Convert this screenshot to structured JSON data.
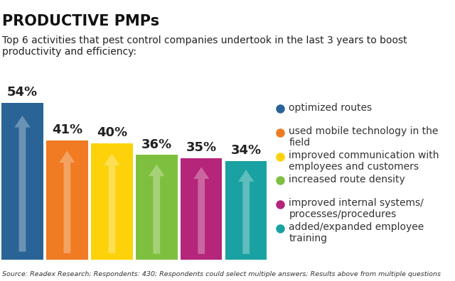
{
  "chart_data": {
    "type": "bar",
    "title": "PRODUCTIVE PMPs",
    "subtitle": "Top 6 activities that pest control companies undertook in the last 3 years to boost productivity and efficiency:",
    "categories": [
      "optimized routes",
      "used mobile technology in the field",
      "improved communication with employees and customers",
      "increased route density",
      "improved internal systems/ processes/procedures",
      "added/expanded employee training"
    ],
    "values": [
      54,
      41,
      40,
      36,
      35,
      34
    ],
    "value_labels": [
      "54%",
      "41%",
      "40%",
      "36%",
      "35%",
      "34%"
    ],
    "colors": [
      "#2a6496",
      "#f07b22",
      "#fdd20a",
      "#7fbf3f",
      "#b5257a",
      "#1aa1a1"
    ],
    "ylim": [
      0,
      54
    ],
    "data_labels": true,
    "tick_labels": false,
    "grid": false,
    "source": "Source: Readex Research; Respondents: 430; Respondents could select multiple answers; Results above from multiple questions"
  }
}
